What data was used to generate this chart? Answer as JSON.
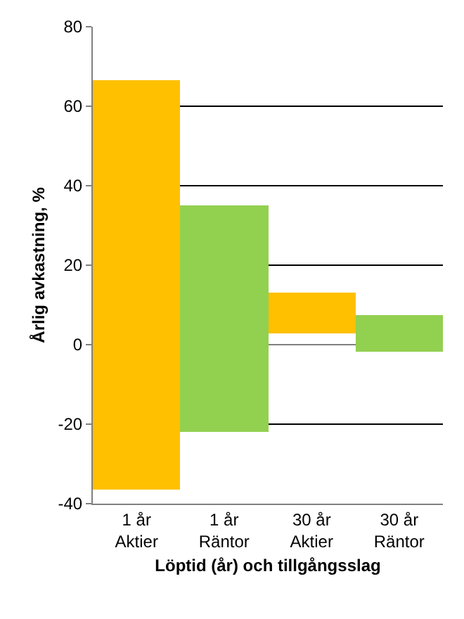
{
  "chart_data": {
    "type": "bar",
    "xlabel": "Löptid (år) och tillgångsslag",
    "ylabel": "Årlig avkastning, %",
    "categories": [
      "1 år\nAktier",
      "1 år\nRäntor",
      "30 år\nAktier",
      "30 år\nRäntor"
    ],
    "base": [
      -36.4,
      -21.9,
      2.7,
      -1.9
    ],
    "values": [
      102.8,
      56.9,
      10.3,
      9.3
    ],
    "colors": [
      "#ffc000",
      "#92d050",
      "#ffc000",
      "#92d050"
    ],
    "ylim": [
      -40,
      80
    ],
    "yticks": [
      -40,
      -20,
      0,
      20,
      40,
      60,
      80
    ],
    "grid": "y",
    "legend": false
  }
}
